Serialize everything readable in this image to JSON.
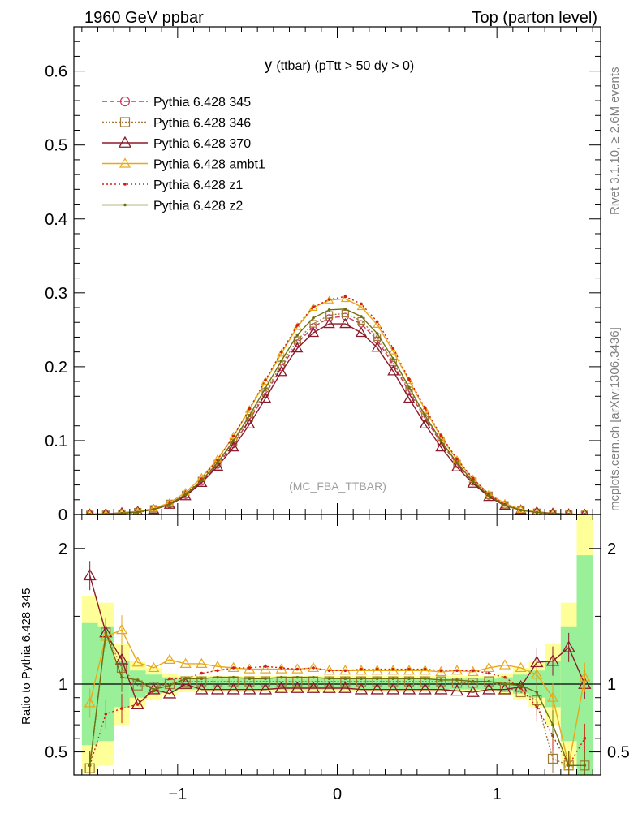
{
  "header": {
    "left": "1960 GeV ppbar",
    "right": "Top (parton level)"
  },
  "side_labels": {
    "rivet": "Rivet 3.1.10, ≥ 2.6M events",
    "mcplots": "mcplots.cern.ch [arXiv:1306.3436]"
  },
  "chart_data": [
    {
      "type": "line",
      "title_main": "y",
      "title_rest": "(ttbar) (pTtt > 50 dy > 0)",
      "watermark": "(MC_FBA_TTBAR)",
      "xlim": [
        -1.65,
        1.65
      ],
      "ylim": [
        0,
        0.66
      ],
      "grid": false,
      "legend_placement": "top-left",
      "x_ticks": [
        -1,
        0,
        1
      ],
      "y_ticks": [
        0,
        0.1,
        0.2,
        0.3,
        0.4,
        0.5,
        0.6
      ],
      "y_tick_labels": [
        "0",
        "0.1",
        "0.2",
        "0.3",
        "0.4",
        "0.5",
        "0.6"
      ],
      "x": [
        -1.55,
        -1.45,
        -1.35,
        -1.25,
        -1.15,
        -1.05,
        -0.95,
        -0.85,
        -0.75,
        -0.65,
        -0.55,
        -0.45,
        -0.35,
        -0.25,
        -0.15,
        -0.05,
        0.05,
        0.15,
        0.25,
        0.35,
        0.45,
        0.55,
        0.65,
        0.75,
        0.85,
        0.95,
        1.05,
        1.15,
        1.25,
        1.35,
        1.45,
        1.55
      ],
      "series": [
        {
          "name": "Pythia 6.428 345",
          "color": "#c8385a",
          "dash": "6,3",
          "marker": "circle",
          "values": [
            0.0002,
            0.0005,
            0.0015,
            0.0035,
            0.0075,
            0.014,
            0.026,
            0.044,
            0.067,
            0.095,
            0.128,
            0.163,
            0.199,
            0.232,
            0.254,
            0.266,
            0.268,
            0.258,
            0.236,
            0.203,
            0.166,
            0.13,
            0.097,
            0.068,
            0.044,
            0.025,
            0.013,
            0.006,
            0.003,
            0.0012,
            0.0005,
            0.0002
          ]
        },
        {
          "name": "Pythia 6.428 346",
          "color": "#a07838",
          "dash": "2,2",
          "marker": "square",
          "values": [
            0.0001,
            0.0002,
            0.0017,
            0.0038,
            0.0076,
            0.015,
            0.027,
            0.046,
            0.069,
            0.098,
            0.131,
            0.166,
            0.203,
            0.236,
            0.258,
            0.27,
            0.272,
            0.262,
            0.24,
            0.206,
            0.168,
            0.132,
            0.099,
            0.069,
            0.045,
            0.026,
            0.013,
            0.006,
            0.003,
            0.0011,
            0.0002,
            0.0001
          ]
        },
        {
          "name": "Pythia 6.428 370",
          "color": "#8b1a2a",
          "dash": "",
          "marker": "triangle",
          "values": [
            0.0004,
            0.0009,
            0.0022,
            0.004,
            0.0065,
            0.0135,
            0.025,
            0.043,
            0.065,
            0.091,
            0.122,
            0.157,
            0.193,
            0.225,
            0.246,
            0.258,
            0.258,
            0.246,
            0.226,
            0.194,
            0.157,
            0.122,
            0.091,
            0.064,
            0.042,
            0.024,
            0.012,
            0.006,
            0.0035,
            0.0016,
            0.0006,
            0.0001
          ]
        },
        {
          "name": "Pythia 6.428 ambt1",
          "color": "#e8a818",
          "dash": "",
          "marker": "triangle-small",
          "values": [
            0.00018,
            0.0006,
            0.002,
            0.004,
            0.0082,
            0.016,
            0.03,
            0.05,
            0.075,
            0.106,
            0.142,
            0.18,
            0.218,
            0.254,
            0.28,
            0.29,
            0.292,
            0.281,
            0.257,
            0.221,
            0.181,
            0.142,
            0.105,
            0.074,
            0.048,
            0.028,
            0.015,
            0.0068,
            0.0032,
            0.0012,
            0.0004,
            0.0001
          ]
        },
        {
          "name": "Pythia 6.428 z1",
          "color": "#d02010",
          "dash": "2,3",
          "marker": "dot",
          "values": [
            0.0001,
            0.0004,
            0.0011,
            0.0028,
            0.0068,
            0.0145,
            0.027,
            0.048,
            0.074,
            0.106,
            0.143,
            0.182,
            0.22,
            0.256,
            0.281,
            0.291,
            0.295,
            0.285,
            0.261,
            0.225,
            0.183,
            0.144,
            0.107,
            0.075,
            0.049,
            0.027,
            0.0135,
            0.0058,
            0.0024,
            0.0008,
            0.0002,
            0.0001
          ]
        },
        {
          "name": "Pythia 6.428 z2",
          "color": "#6e7010",
          "dash": "",
          "marker": "dot",
          "values": [
            0.00012,
            0.0004,
            0.0016,
            0.0032,
            0.007,
            0.0138,
            0.027,
            0.046,
            0.07,
            0.1,
            0.134,
            0.171,
            0.208,
            0.243,
            0.266,
            0.277,
            0.278,
            0.268,
            0.245,
            0.211,
            0.172,
            0.134,
            0.1,
            0.07,
            0.045,
            0.0255,
            0.0125,
            0.0056,
            0.0028,
            0.001,
            0.0003,
            0.0001
          ]
        }
      ]
    },
    {
      "type": "line",
      "ylabel": "Ratio to Pythia 6.428 345",
      "xlim": [
        -1.65,
        1.65
      ],
      "ylim": [
        0.33,
        2.25
      ],
      "reference_line": 1,
      "x_ticks": [
        -1,
        0,
        1
      ],
      "x_tick_labels": [
        "−1",
        "0",
        "1"
      ],
      "y_ticks": [
        0.5,
        1,
        2
      ],
      "y_tick_labels": [
        "0.5",
        "1",
        "2"
      ],
      "x": [
        -1.55,
        -1.45,
        -1.35,
        -1.25,
        -1.15,
        -1.05,
        -0.95,
        -0.85,
        -0.75,
        -0.65,
        -0.55,
        -0.45,
        -0.35,
        -0.25,
        -0.15,
        -0.05,
        0.05,
        0.15,
        0.25,
        0.35,
        0.45,
        0.55,
        0.65,
        0.75,
        0.85,
        0.95,
        1.05,
        1.15,
        1.25,
        1.35,
        1.45,
        1.55
      ],
      "band_green_half": [
        0.45,
        0.42,
        0.17,
        0.1,
        0.07,
        0.05,
        0.04,
        0.04,
        0.04,
        0.04,
        0.04,
        0.04,
        0.04,
        0.04,
        0.04,
        0.04,
        0.04,
        0.04,
        0.04,
        0.04,
        0.04,
        0.04,
        0.04,
        0.04,
        0.04,
        0.04,
        0.05,
        0.07,
        0.1,
        0.17,
        0.42,
        0.95
      ],
      "band_yellow_half": [
        0.65,
        0.6,
        0.3,
        0.17,
        0.12,
        0.08,
        0.06,
        0.06,
        0.06,
        0.06,
        0.06,
        0.06,
        0.06,
        0.06,
        0.06,
        0.06,
        0.06,
        0.06,
        0.06,
        0.06,
        0.06,
        0.06,
        0.06,
        0.06,
        0.06,
        0.06,
        0.08,
        0.12,
        0.17,
        0.3,
        0.6,
        1.3
      ],
      "series": [
        {
          "name": "Pythia 6.428 346",
          "color": "#a07838",
          "values": [
            0.38,
            1.38,
            1.12,
            0.99,
            0.98,
            1.0,
            1.02,
            1.02,
            1.02,
            1.02,
            1.02,
            1.02,
            1.02,
            1.02,
            1.02,
            1.02,
            1.02,
            1.02,
            1.02,
            1.02,
            1.02,
            1.02,
            1.02,
            1.01,
            1.01,
            1.02,
            0.98,
            0.94,
            0.88,
            0.45,
            0.4,
            0.4
          ]
        },
        {
          "name": "Pythia 6.428 370",
          "color": "#8b1a2a",
          "values": [
            1.8,
            1.38,
            1.18,
            0.85,
            0.96,
            0.93,
            1.0,
            0.96,
            0.96,
            0.96,
            0.96,
            0.96,
            0.97,
            0.97,
            0.97,
            0.97,
            0.97,
            0.96,
            0.96,
            0.96,
            0.96,
            0.96,
            0.96,
            0.95,
            0.94,
            0.96,
            0.96,
            0.98,
            1.16,
            1.17,
            1.27,
            1.0
          ]
        },
        {
          "name": "Pythia 6.428 ambt1",
          "color": "#e8a818",
          "values": [
            0.86,
            1.35,
            1.4,
            1.16,
            1.12,
            1.18,
            1.15,
            1.15,
            1.13,
            1.12,
            1.11,
            1.11,
            1.11,
            1.11,
            1.12,
            1.1,
            1.1,
            1.1,
            1.1,
            1.1,
            1.1,
            1.1,
            1.09,
            1.1,
            1.09,
            1.12,
            1.14,
            1.12,
            1.07,
            0.9,
            0.4,
            1.05
          ]
        },
        {
          "name": "Pythia 6.428 z1",
          "color": "#d02010",
          "values": [
            0.4,
            0.78,
            0.82,
            0.85,
            0.95,
            1.04,
            1.04,
            1.08,
            1.1,
            1.12,
            1.12,
            1.13,
            1.12,
            1.11,
            1.12,
            1.1,
            1.1,
            1.11,
            1.11,
            1.11,
            1.11,
            1.11,
            1.1,
            1.1,
            1.1,
            1.08,
            1.05,
            0.97,
            0.83,
            0.62,
            0.4,
            0.6
          ]
        },
        {
          "name": "Pythia 6.428 z2",
          "color": "#6e7010",
          "values": [
            0.4,
            1.38,
            1.05,
            1.03,
            0.96,
            0.99,
            1.04,
            1.04,
            1.05,
            1.05,
            1.04,
            1.04,
            1.05,
            1.05,
            1.05,
            1.04,
            1.04,
            1.04,
            1.04,
            1.04,
            1.04,
            1.04,
            1.03,
            1.03,
            1.02,
            1.02,
            1.0,
            0.99,
            0.94,
            0.7,
            0.4,
            0.4
          ]
        }
      ]
    }
  ]
}
